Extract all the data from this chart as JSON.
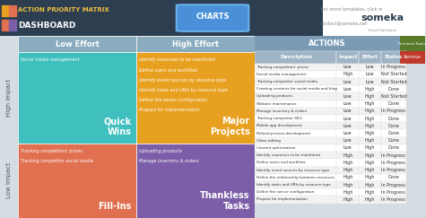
{
  "title_left": "ACTION PRIORITY MATRIX",
  "subtitle_left": "DASHBOARD",
  "header_bg": "#2c3e50",
  "header_text_color": "#ffffff",
  "charts_btn_color": "#4a90d9",
  "charts_btn_text": "CHARTS",
  "someka_text": "For more templates, click in",
  "contact_text": "contact@someka.net",
  "col_headers": [
    "Low Effort",
    "High Effort"
  ],
  "row_headers": [
    "High Impact",
    "Low Impact"
  ],
  "quadrant_colors": [
    "#40bfbf",
    "#e8a020",
    "#e07050",
    "#7b5ea7"
  ],
  "quadrant_labels": [
    "Quick\nWins",
    "Major\nProjects",
    "Fill-Ins",
    "Thankless\nTasks"
  ],
  "q_label_colors": [
    "#ffffff",
    "#ffffff",
    "#ffffff",
    "#ffffff"
  ],
  "quadrant_items": {
    "tl": [
      "Social media management"
    ],
    "tr": [
      "Identify resources to be monitored",
      "Define users and workflow",
      "Identify event sources by resource type",
      "Identify tasks and URIs by resource type",
      "Define the server configuration",
      "Prepare for implementation"
    ],
    "bl": [
      "Tracking competitors' prices",
      "Tracking competitor social media"
    ],
    "br": [
      "Uploading products",
      "Manage inventory & orders"
    ]
  },
  "quadrant_item_color": "#ffffff",
  "quadrant_item_style": "italic",
  "axis_label_high_impact": "High Impact",
  "axis_label_low_impact": "Low Impact",
  "axis_label_color": "#555555",
  "actions_header": "ACTIONS",
  "actions_header_bg": "#7b9bb5",
  "actions_header_text": "#ffffff",
  "col_header_bg": "#a0b4c5",
  "col_header_text": "#ffffff",
  "table_columns": [
    "Description",
    "Impact",
    "Effort",
    "Status"
  ],
  "table_rows": [
    [
      "Tracking competitors' prices",
      "Low",
      "Low",
      "In Progress"
    ],
    [
      "Social media management",
      "High",
      "Low",
      "Not Started"
    ],
    [
      "Tracking competitor social media",
      "Low",
      "Low",
      "Not Started"
    ],
    [
      "Creating contents for social media and blog",
      "Low",
      "High",
      "Done"
    ],
    [
      "Uploading products",
      "Low",
      "High",
      "Not Started"
    ],
    [
      "Website maintenance",
      "Low",
      "High",
      "Done"
    ],
    [
      "Manage inventory & orders",
      "Low",
      "High",
      "In Progress"
    ],
    [
      "Tracking competitor SEO",
      "Low",
      "High",
      "Done"
    ],
    [
      "Mobile app development",
      "Low",
      "High",
      "Done"
    ],
    [
      "Refund process development",
      "Low",
      "High",
      "Done"
    ],
    [
      "Video editing",
      "Low",
      "High",
      "Done"
    ],
    [
      "Content optimization",
      "Low",
      "High",
      "Done"
    ],
    [
      "Identify resources to be monitored",
      "High",
      "High",
      "In Progress"
    ],
    [
      "Define users and workflow",
      "High",
      "High",
      "In Progress"
    ],
    [
      "Identify event sources by resource type",
      "High",
      "High",
      "In Progress"
    ],
    [
      "Define the relationship between resources",
      "High",
      "High",
      "Done"
    ],
    [
      "Identify tasks and URIs by resource type",
      "High",
      "High",
      "In Progress"
    ],
    [
      "Define the server configuration",
      "High",
      "High",
      "In Progress"
    ],
    [
      "Prepare for implementation",
      "High",
      "High",
      "In Progress"
    ]
  ],
  "row_colors_alt": [
    "#f2f2f2",
    "#ffffff"
  ],
  "finished_tasks_label": "Finished Tasks",
  "finished_tasks_bg": "#5a7a2a",
  "remove_btn_bg": "#c0392b",
  "remove_btn_text": "Remove",
  "matrix_bg": "#e8edf0",
  "matrix_header_bg": "#8aacbe",
  "outer_bg": "#d5dde3",
  "icon_colors": [
    "#e8a020",
    "#e07050"
  ]
}
